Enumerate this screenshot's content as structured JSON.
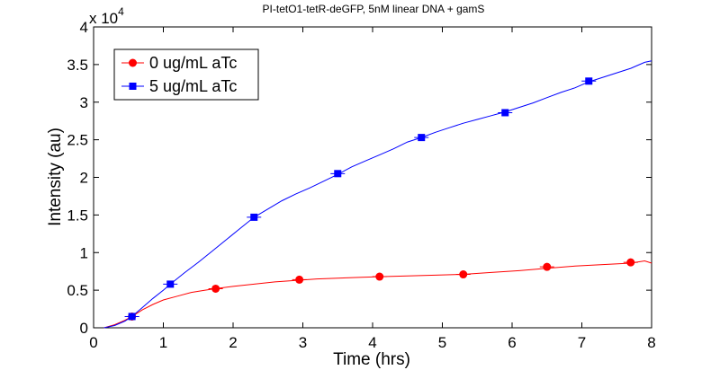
{
  "chart_data": {
    "type": "line",
    "title": "PI-tetO1-tetR-deGFP, 5nM linear DNA + gamS",
    "xlabel": "Time (hrs)",
    "ylabel": "Intensity (au)",
    "xlim": [
      0,
      8
    ],
    "ylim": [
      0,
      40000
    ],
    "x_ticks": [
      0,
      1,
      2,
      3,
      4,
      5,
      6,
      7,
      8
    ],
    "y_ticks": [
      0,
      5000,
      10000,
      15000,
      20000,
      25000,
      30000,
      35000,
      40000
    ],
    "y_tick_labels": [
      "0",
      "0.5",
      "1",
      "1.5",
      "2",
      "2.5",
      "3",
      "3.5",
      "4"
    ],
    "y_multiplier": {
      "base": "x 10",
      "exponent": "4"
    },
    "grid": false,
    "legend_position": "top-left",
    "series": [
      {
        "name": "0 ug/mL aTc",
        "color": "#ff0000",
        "marker": "circle",
        "curve_x": [
          0.15,
          0.3,
          0.45,
          0.55,
          0.7,
          0.85,
          1.0,
          1.2,
          1.4,
          1.6,
          1.75,
          2.0,
          2.3,
          2.6,
          2.9,
          3.2,
          3.5,
          3.8,
          4.1,
          4.5,
          4.9,
          5.3,
          5.7,
          6.1,
          6.5,
          6.9,
          7.3,
          7.7,
          7.9,
          8.0
        ],
        "curve_y": [
          0,
          400,
          1000,
          1500,
          2400,
          3100,
          3700,
          4200,
          4700,
          5000,
          5200,
          5500,
          5800,
          6100,
          6300,
          6500,
          6600,
          6700,
          6800,
          6900,
          7000,
          7100,
          7350,
          7600,
          7900,
          8200,
          8400,
          8600,
          8900,
          8600
        ],
        "marker_x": [
          0.55,
          1.75,
          2.95,
          4.1,
          5.3,
          6.5,
          7.7
        ],
        "marker_y": [
          1500,
          5200,
          6400,
          6800,
          7100,
          8100,
          8700
        ]
      },
      {
        "name": "5 ug/mL aTc",
        "color": "#0000ff",
        "marker": "square",
        "curve_x": [
          0.15,
          0.3,
          0.45,
          0.55,
          0.7,
          0.85,
          1.0,
          1.1,
          1.3,
          1.5,
          1.7,
          1.9,
          2.1,
          2.3,
          2.5,
          2.7,
          2.9,
          3.1,
          3.3,
          3.5,
          3.7,
          3.9,
          4.1,
          4.3,
          4.5,
          4.7,
          4.9,
          5.1,
          5.3,
          5.5,
          5.7,
          5.9,
          6.1,
          6.3,
          6.5,
          6.7,
          6.9,
          7.1,
          7.3,
          7.5,
          7.7,
          7.9,
          8.0
        ],
        "curve_y": [
          0,
          300,
          900,
          1500,
          2700,
          3900,
          5000,
          5800,
          7300,
          8700,
          10200,
          11700,
          13200,
          14700,
          15800,
          16900,
          17800,
          18600,
          19500,
          20400,
          21400,
          22200,
          23000,
          23800,
          24700,
          25300,
          26000,
          26600,
          27200,
          27700,
          28200,
          28700,
          29300,
          29900,
          30600,
          31300,
          31900,
          32700,
          33300,
          33900,
          34500,
          35300,
          35500
        ],
        "marker_x": [
          0.55,
          1.1,
          2.3,
          3.5,
          4.7,
          5.9,
          7.1
        ],
        "marker_y": [
          1500,
          5800,
          14700,
          20500,
          25300,
          28600,
          32800
        ]
      }
    ]
  }
}
